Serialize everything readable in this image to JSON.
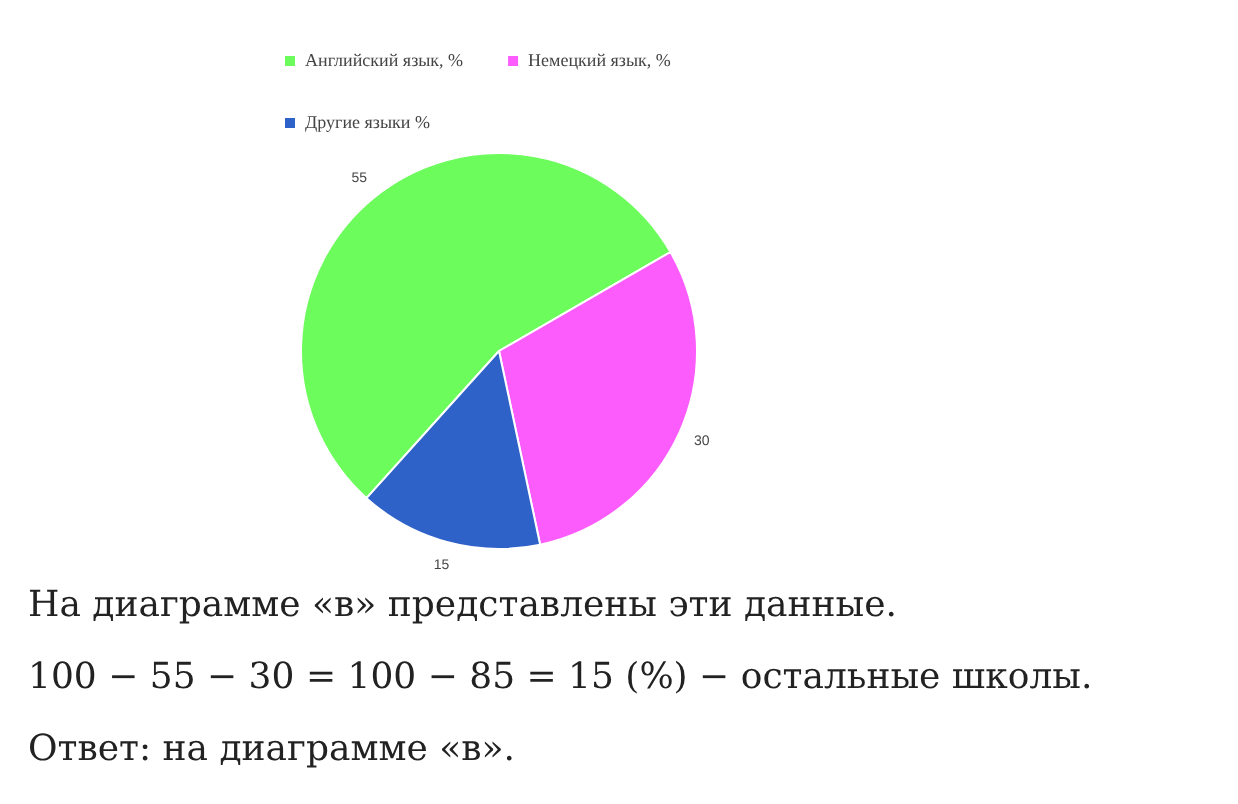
{
  "chart_data": {
    "type": "pie",
    "categories": [
      "Английский язык, %",
      "Немецкий язык, %",
      "Другие языки %"
    ],
    "values": [
      55,
      30,
      15
    ],
    "colors": [
      "#6cfc5c",
      "#fc5cfc",
      "#2f62c8"
    ],
    "data_labels": true,
    "legend": "top",
    "annotations": [
      "На диаграмме «в» представлены эти данные.",
      "100 − 55 − 30 = 100 − 85 = 15 (%) − остальные школы.",
      "Ответ: на диаграмме «в»."
    ]
  }
}
